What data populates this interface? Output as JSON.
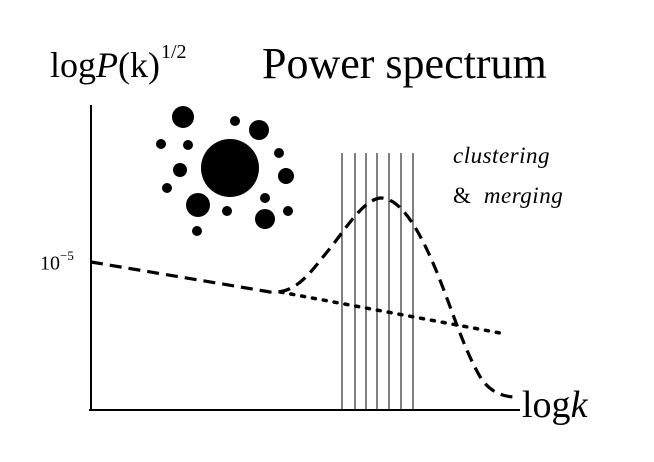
{
  "title": "Power spectrum",
  "y_axis_label": {
    "prefix": "log",
    "variable": "P",
    "argument": "(k)",
    "exponent": "1/2"
  },
  "x_axis_label": {
    "prefix": "log",
    "variable": "k"
  },
  "y_tick": {
    "base": "10",
    "exponent": "−5"
  },
  "annotation": {
    "line1": "clustering",
    "line2_prefix": "&",
    "line2_word": "merging"
  },
  "icon_cluster": "galaxy-clustering-dots-icon",
  "colors": {
    "foreground": "#000000",
    "background": "#ffffff"
  }
}
